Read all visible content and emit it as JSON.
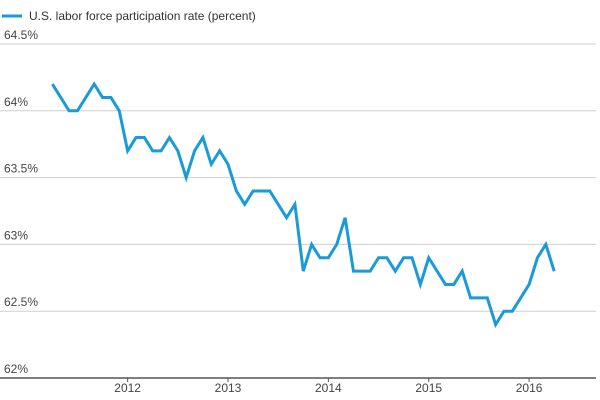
{
  "chart_data": {
    "type": "line",
    "title": "",
    "xlabel": "",
    "ylabel": "",
    "legend": {
      "position": "top-left"
    },
    "grid": {
      "y": true,
      "x": false
    },
    "colors": {
      "series": "#1a9bd7",
      "grid": "#cfcfcf",
      "axis": "#555555"
    },
    "ylim": [
      62,
      64.5
    ],
    "yticks": [
      {
        "value": 62,
        "label": "62%"
      },
      {
        "value": 62.5,
        "label": "62.5%"
      },
      {
        "value": 63,
        "label": "63%"
      },
      {
        "value": 63.5,
        "label": "63.5%"
      },
      {
        "value": 64,
        "label": "64%"
      },
      {
        "value": 64.5,
        "label": "64.5%"
      }
    ],
    "xlim": [
      "2011-03",
      "2016-09"
    ],
    "xticks": [
      {
        "value": "2012-01",
        "label": "2012"
      },
      {
        "value": "2013-01",
        "label": "2013"
      },
      {
        "value": "2014-01",
        "label": "2014"
      },
      {
        "value": "2015-01",
        "label": "2015"
      },
      {
        "value": "2016-01",
        "label": "2016"
      }
    ],
    "series": [
      {
        "name": "U.S. labor force participation rate (percent)",
        "x": [
          "2011-04",
          "2011-05",
          "2011-06",
          "2011-07",
          "2011-08",
          "2011-09",
          "2011-10",
          "2011-11",
          "2011-12",
          "2012-01",
          "2012-02",
          "2012-03",
          "2012-04",
          "2012-05",
          "2012-06",
          "2012-07",
          "2012-08",
          "2012-09",
          "2012-10",
          "2012-11",
          "2012-12",
          "2013-01",
          "2013-02",
          "2013-03",
          "2013-04",
          "2013-05",
          "2013-06",
          "2013-07",
          "2013-08",
          "2013-09",
          "2013-10",
          "2013-11",
          "2013-12",
          "2014-01",
          "2014-02",
          "2014-03",
          "2014-04",
          "2014-05",
          "2014-06",
          "2014-07",
          "2014-08",
          "2014-09",
          "2014-10",
          "2014-11",
          "2014-12",
          "2015-01",
          "2015-02",
          "2015-03",
          "2015-04",
          "2015-05",
          "2015-06",
          "2015-07",
          "2015-08",
          "2015-09",
          "2015-10",
          "2015-11",
          "2015-12",
          "2016-01",
          "2016-02",
          "2016-03",
          "2016-04"
        ],
        "values": [
          64.2,
          64.1,
          64.0,
          64.0,
          64.1,
          64.2,
          64.1,
          64.1,
          64.0,
          63.7,
          63.8,
          63.8,
          63.7,
          63.7,
          63.8,
          63.7,
          63.5,
          63.7,
          63.8,
          63.6,
          63.7,
          63.6,
          63.4,
          63.3,
          63.4,
          63.4,
          63.4,
          63.3,
          63.2,
          63.3,
          62.8,
          63.0,
          62.9,
          62.9,
          63.0,
          63.2,
          62.8,
          62.8,
          62.8,
          62.9,
          62.9,
          62.8,
          62.9,
          62.9,
          62.7,
          62.9,
          62.8,
          62.7,
          62.7,
          62.8,
          62.6,
          62.6,
          62.6,
          62.4,
          62.5,
          62.5,
          62.6,
          62.7,
          62.9,
          63.0,
          62.8
        ]
      }
    ]
  }
}
